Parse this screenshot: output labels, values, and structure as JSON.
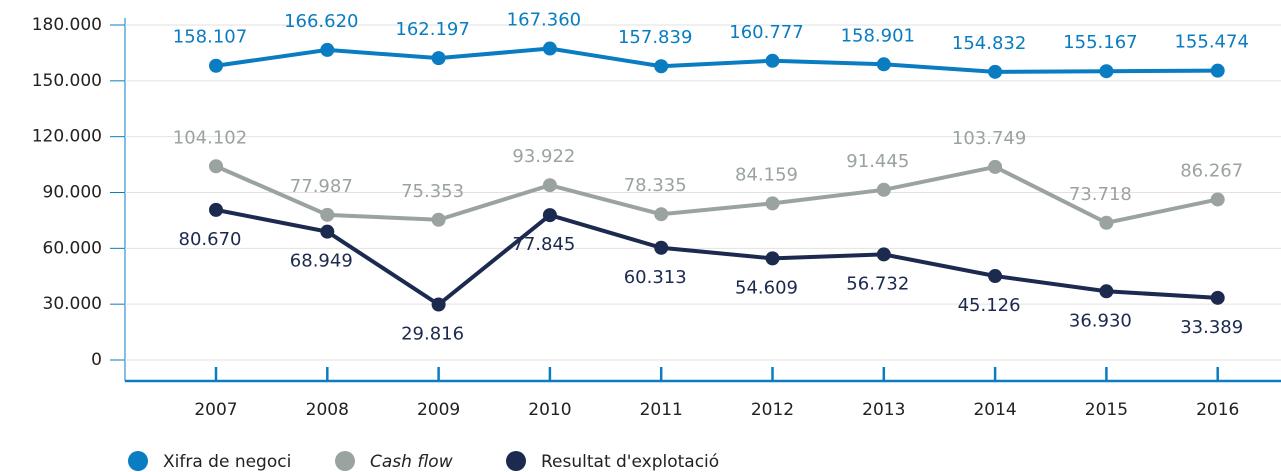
{
  "chart_data": {
    "type": "line",
    "categories": [
      "2007",
      "2008",
      "2009",
      "2010",
      "2011",
      "2012",
      "2013",
      "2014",
      "2015",
      "2016"
    ],
    "series": [
      {
        "name": "Xifra de negoci",
        "color": "#0a7cc1",
        "values": [
          158107,
          166620,
          162197,
          167360,
          157839,
          160777,
          158901,
          154832,
          155167,
          155474
        ],
        "value_labels": [
          "158.107",
          "166.620",
          "162.197",
          "167.360",
          "157.839",
          "160.777",
          "158.901",
          "154.832",
          "155.167",
          "155.474"
        ]
      },
      {
        "name": "Cash flow",
        "color": "#9aa39f",
        "values": [
          104102,
          77987,
          75353,
          93922,
          78335,
          84159,
          91445,
          103749,
          73718,
          86267
        ],
        "value_labels": [
          "104.102",
          "77.987",
          "75.353",
          "93.922",
          "78.335",
          "84.159",
          "91.445",
          "103.749",
          "73.718",
          "86.267"
        ]
      },
      {
        "name": "Resultat d'explotació",
        "color": "#1b2a4e",
        "values": [
          80670,
          68949,
          29816,
          77845,
          60313,
          54609,
          56732,
          45126,
          36930,
          33389
        ],
        "value_labels": [
          "80.670",
          "68.949",
          "29.816",
          "77.845",
          "60.313",
          "54.609",
          "56.732",
          "45.126",
          "36.930",
          "33.389"
        ]
      }
    ],
    "ylim": [
      0,
      180000
    ],
    "yticks": [
      0,
      {
        "value": 30000,
        "label": "30.000"
      },
      {
        "value": 60000,
        "label": "60.000"
      },
      {
        "value": 90000,
        "label": "90.000"
      },
      {
        "value": 120000,
        "label": "120.000"
      },
      {
        "value": 150000,
        "label": "150.000"
      },
      {
        "value": 180000,
        "label": "180.000"
      }
    ],
    "grid": true
  }
}
